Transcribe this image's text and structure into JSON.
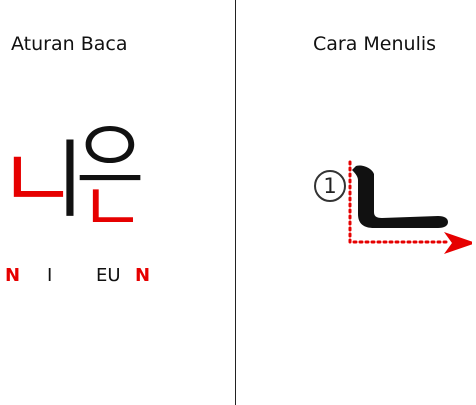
{
  "left_panel": {
    "title": "Aturan Baca",
    "syllable_1": {
      "initial": "ㄴ",
      "vowel": "ㅣ"
    },
    "syllable_2": {
      "vowel": "으",
      "final": "ㄴ"
    },
    "romanization": [
      {
        "text": "N",
        "highlight": true
      },
      {
        "text": "I",
        "highlight": false
      },
      {
        "text": "EU",
        "highlight": false
      },
      {
        "text": "N",
        "highlight": true
      }
    ]
  },
  "right_panel": {
    "title": "Cara Menulis",
    "step_number": "1",
    "stroke_glyph": "ㄴ"
  },
  "colors": {
    "highlight": "#e60000",
    "text": "#111111",
    "arrow": "#e60000"
  }
}
